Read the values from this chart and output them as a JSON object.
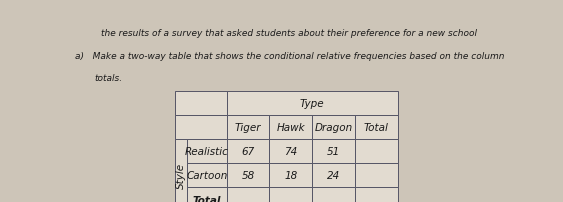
{
  "title_line1": "the results of a survey that asked students about their preference for a new school",
  "question": "a)   Make a two-way table that shows the conditional relative frequencies based on the column",
  "question_line2": "totals.",
  "col_header_span": "Type",
  "col_headers": [
    "Tiger",
    "Hawk",
    "Dragon",
    "Total"
  ],
  "row_label_span": "Style",
  "row_labels": [
    "Realistic",
    "Cartoon",
    "Total"
  ],
  "data": [
    [
      "67",
      "74",
      "51",
      ""
    ],
    [
      "58",
      "18",
      "24",
      ""
    ],
    [
      "",
      "",
      "",
      ""
    ]
  ],
  "bg_color": "#cdc5b8",
  "cell_bg": "#e2dbd0",
  "header_bg": "#cdc5b8",
  "border_color": "#555566",
  "font_color": "#1a1a1a",
  "font_size_text": 6.5,
  "font_size_table": 7.5,
  "lw": 0.7
}
